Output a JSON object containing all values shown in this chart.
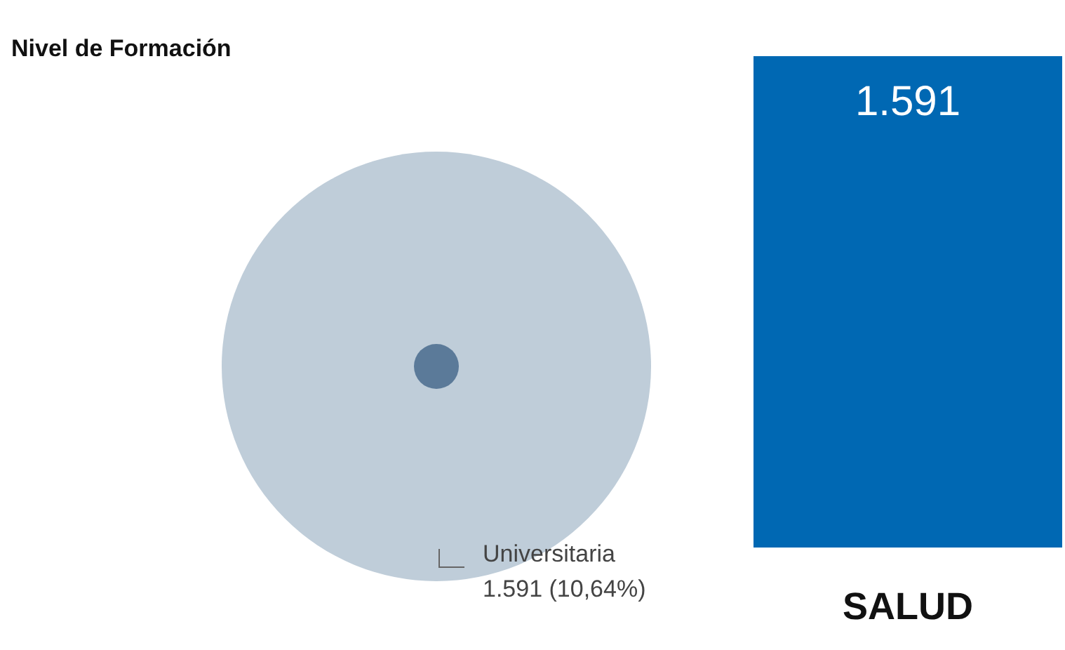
{
  "chart_data": [
    {
      "type": "other",
      "title": "Nivel de Formación",
      "categories": [
        "Universitaria"
      ],
      "values": [
        1591
      ],
      "value_labels": [
        "1.591 (10,64%)"
      ],
      "colors": [
        "#5b7a99"
      ]
    },
    {
      "type": "other",
      "categories": [
        "SALUD"
      ],
      "values": [
        1591
      ],
      "value_labels": [
        "1.591"
      ],
      "colors": [
        "#0068b3"
      ]
    }
  ]
}
